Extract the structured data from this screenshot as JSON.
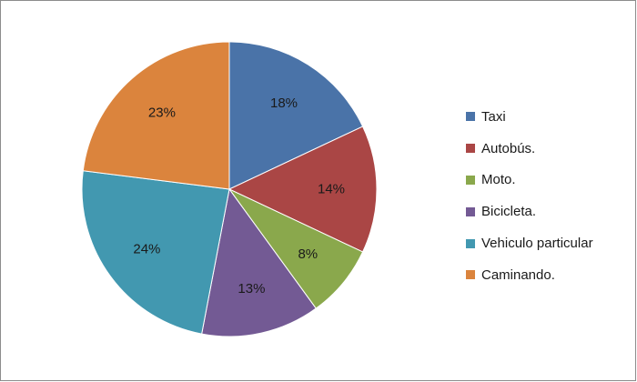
{
  "chart_data": {
    "type": "pie",
    "categories": [
      "Taxi",
      "Autobús.",
      "Moto.",
      "Bicicleta.",
      "Vehiculo particular",
      "Caminando."
    ],
    "values": [
      18,
      14,
      8,
      13,
      24,
      23
    ],
    "data_labels": [
      "18%",
      "14%",
      "8%",
      "13%",
      "24%",
      "23%"
    ],
    "colors": [
      "#4a73a8",
      "#aa4645",
      "#8aa84c",
      "#735a94",
      "#4298b0",
      "#db843d"
    ],
    "start_angle_deg": 0,
    "direction": "clockwise",
    "legend_position": "right"
  }
}
